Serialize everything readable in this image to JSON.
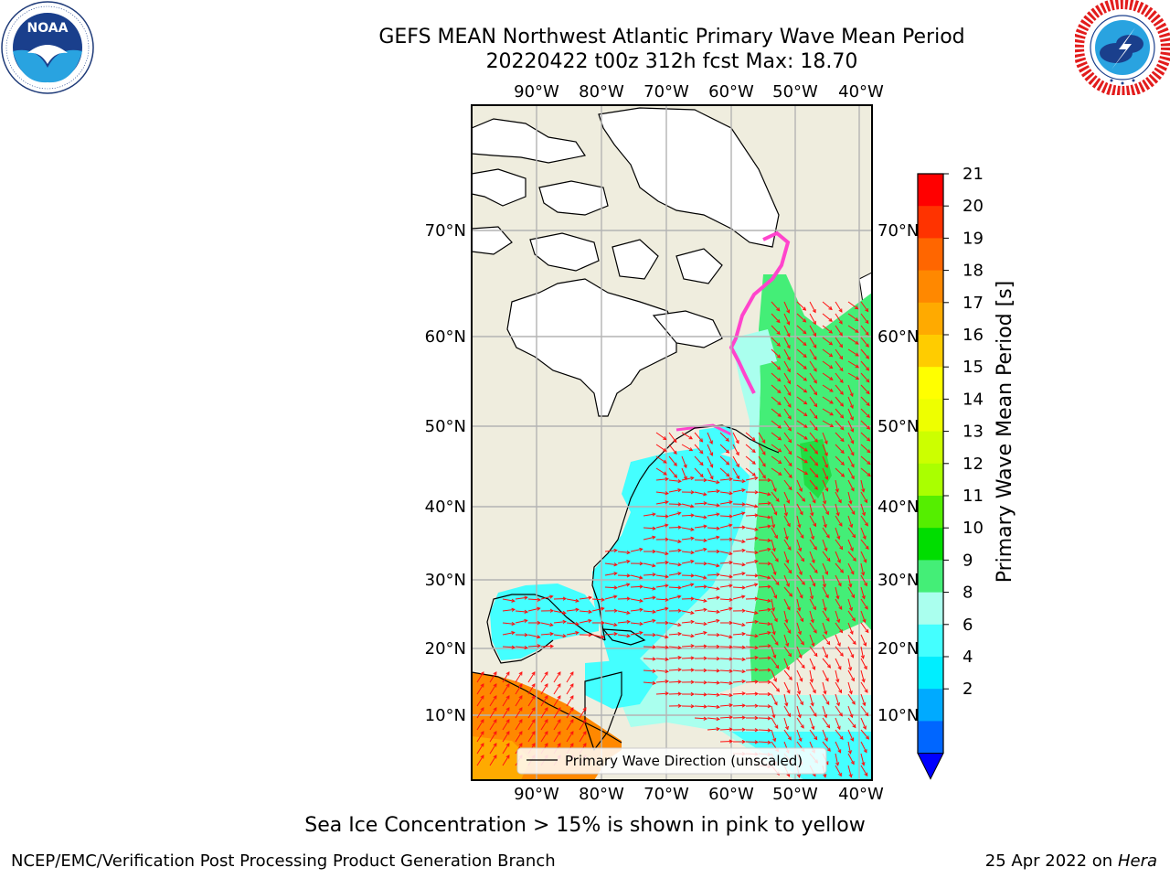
{
  "header": {
    "title_line1": "GEFS MEAN Northwest Atlantic Primary Wave Mean Period",
    "title_line2": "20220422 t00z 312h fcst   Max: 18.70"
  },
  "logos": {
    "left": {
      "icon": "noaa-logo",
      "text": "NOAA",
      "ring_text": "NATIONAL OCEANIC AND ATMOSPHERIC ADMINISTRATION · U.S. DEPARTMENT OF COMMERCE"
    },
    "right": {
      "icon": "nws-logo",
      "ring_text": "NATIONAL WEATHER SERVICE"
    }
  },
  "map": {
    "lon_labels": [
      "90°W",
      "80°W",
      "70°W",
      "60°W",
      "50°W",
      "40°W"
    ],
    "lat_labels": [
      "70°N",
      "60°N",
      "50°N",
      "40°N",
      "30°N",
      "20°N",
      "10°N"
    ],
    "legend_label": "Primary Wave Direction (unscaled)",
    "colors": {
      "land": "#efedde",
      "ice_land": "#ffffff",
      "gridline": "#b4b4b4",
      "arrow": "#ff1010",
      "sea_ice": "#ff44cc"
    }
  },
  "colorbar": {
    "label": "Primary Wave Mean Period [s]",
    "ticks": [
      "21",
      "20",
      "19",
      "18",
      "17",
      "16",
      "15",
      "14",
      "13",
      "12",
      "11",
      "10",
      "9",
      "8",
      "6",
      "4",
      "2"
    ],
    "colors": [
      "#ff0000",
      "#ff3300",
      "#ff6600",
      "#ff8800",
      "#ffaa00",
      "#ffcc00",
      "#ffff00",
      "#eeff00",
      "#ccff00",
      "#aaff00",
      "#55ee00",
      "#00dd00",
      "#44ee77",
      "#aaffee",
      "#44ffff",
      "#00eeff",
      "#00aaff",
      "#0066ff"
    ],
    "extend_color": "#0000ff"
  },
  "caption": "Sea Ice Concentration > 15% is shown in pink to yellow",
  "footer": {
    "left": "NCEP/EMC/Verification Post Processing Product Generation Branch",
    "right_date": "25 Apr 2022 on",
    "right_host": "Hera"
  }
}
